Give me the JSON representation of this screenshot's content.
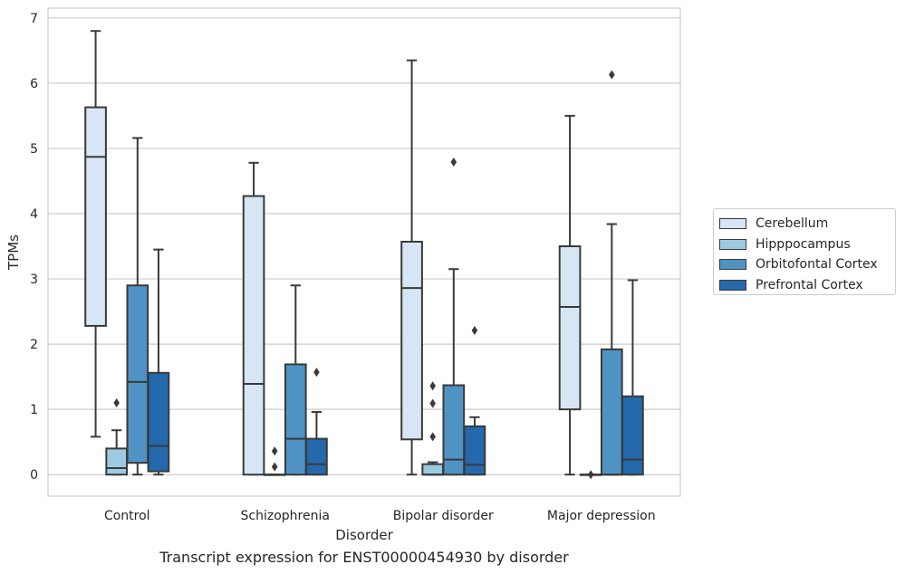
{
  "chart_data": {
    "type": "box",
    "title": "",
    "caption": "Transcript expression for ENST00000454930 by disorder",
    "xlabel": "Disorder",
    "ylabel": "TPMs",
    "ylim": [
      -0.33,
      7.15
    ],
    "yticks": [
      0,
      1,
      2,
      3,
      4,
      5,
      6,
      7
    ],
    "grid": "horizontal",
    "legend_position": "right",
    "categories": [
      "Control",
      "Schizophrenia",
      "Bipolar disorder",
      "Major depression"
    ],
    "series": [
      {
        "name": "Cerebellum",
        "color": "#d6e6f4",
        "boxes": [
          {
            "whislo": 0.58,
            "q1": 2.28,
            "med": 4.87,
            "q3": 5.63,
            "whishi": 6.8,
            "fliers": []
          },
          {
            "whislo": 0.0,
            "q1": 0.0,
            "med": 1.39,
            "q3": 4.27,
            "whishi": 4.78,
            "fliers": []
          },
          {
            "whislo": 0.0,
            "q1": 0.54,
            "med": 2.86,
            "q3": 3.57,
            "whishi": 6.35,
            "fliers": []
          },
          {
            "whislo": 0.0,
            "q1": 1.0,
            "med": 2.57,
            "q3": 3.5,
            "whishi": 5.5,
            "fliers": []
          }
        ]
      },
      {
        "name": "Hipppocampus",
        "color": "#9ecae1",
        "boxes": [
          {
            "whislo": 0.0,
            "q1": 0.0,
            "med": 0.1,
            "q3": 0.4,
            "whishi": 0.68,
            "fliers": [
              1.1
            ]
          },
          {
            "whislo": 0.0,
            "q1": 0.0,
            "med": 0.0,
            "q3": 0.0,
            "whishi": 0.0,
            "fliers": [
              0.12,
              0.36
            ]
          },
          {
            "whislo": 0.0,
            "q1": 0.0,
            "med": 0.0,
            "q3": 0.16,
            "whishi": 0.19,
            "fliers": [
              0.58,
              1.09,
              1.36
            ]
          },
          {
            "whislo": 0.0,
            "q1": 0.0,
            "med": 0.0,
            "q3": 0.0,
            "whishi": 0.0,
            "fliers": [
              0.0
            ]
          }
        ]
      },
      {
        "name": "Orbitofontal Cortex",
        "color": "#4f93c4",
        "boxes": [
          {
            "whislo": 0.0,
            "q1": 0.18,
            "med": 1.42,
            "q3": 2.9,
            "whishi": 5.16,
            "fliers": []
          },
          {
            "whislo": 0.0,
            "q1": 0.0,
            "med": 0.55,
            "q3": 1.69,
            "whishi": 2.9,
            "fliers": []
          },
          {
            "whislo": 0.0,
            "q1": 0.0,
            "med": 0.23,
            "q3": 1.37,
            "whishi": 3.15,
            "fliers": [
              4.79
            ]
          },
          {
            "whislo": 0.0,
            "q1": 0.0,
            "med": 0.0,
            "q3": 1.92,
            "whishi": 3.84,
            "fliers": [
              6.13
            ]
          }
        ]
      },
      {
        "name": "Prefrontal Cortex",
        "color": "#2369ab",
        "boxes": [
          {
            "whislo": 0.0,
            "q1": 0.05,
            "med": 0.44,
            "q3": 1.56,
            "whishi": 3.45,
            "fliers": []
          },
          {
            "whislo": 0.0,
            "q1": 0.0,
            "med": 0.16,
            "q3": 0.55,
            "whishi": 0.96,
            "fliers": [
              1.57
            ]
          },
          {
            "whislo": 0.0,
            "q1": 0.0,
            "med": 0.15,
            "q3": 0.74,
            "whishi": 0.88,
            "fliers": [
              2.21
            ]
          },
          {
            "whislo": 0.0,
            "q1": 0.0,
            "med": 0.23,
            "q3": 1.2,
            "whishi": 2.98,
            "fliers": []
          }
        ]
      }
    ]
  }
}
